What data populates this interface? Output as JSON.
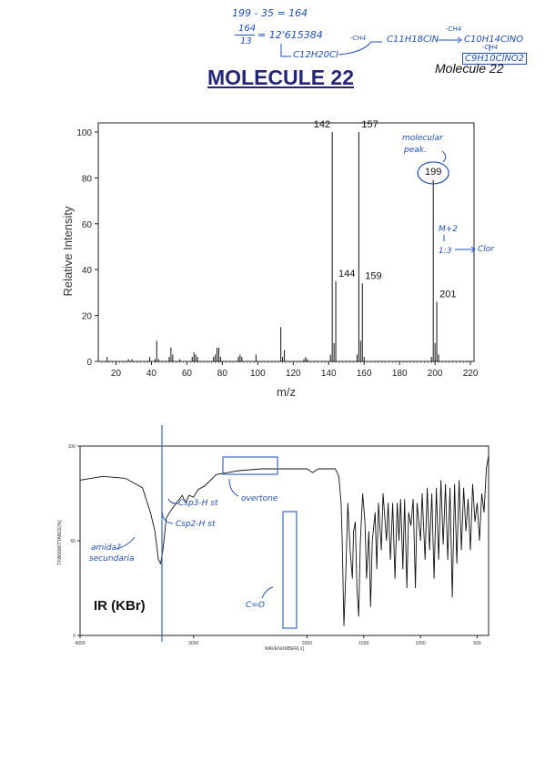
{
  "header": {
    "title": "MOLECULE 22",
    "corner_label": "Molecule 22",
    "calc_line1": "199 - 35 = 164",
    "calc_fraction_top": "164",
    "calc_fraction_bottom": "13",
    "calc_result": "= 12'615384",
    "formula_base": "C12H20Cl",
    "formula_step1": "C11H18ClN",
    "formula_step2": "C10H14ClNO",
    "formula_step3": "C9H10ClNO2",
    "loss_label": "-CH4"
  },
  "ms_notes": {
    "molecular_peak": "molecular peak.",
    "m_plus_2": "M+2",
    "ratio": "1:3",
    "chlorine": "Clor"
  },
  "ir": {
    "label": "IR (KBr)",
    "ylabel": "TRANSMITTANCE[%]",
    "xlabel": "WAVENUMBER[-1]",
    "y_ticks": [
      "100",
      "50",
      "0"
    ],
    "x_ticks": [
      "4000",
      "3000",
      "2000",
      "1500",
      "1000",
      "500"
    ],
    "notes": {
      "csp3": "Csp3-H st",
      "csp2": "Csp2-H st",
      "overtone": "overtone",
      "amide": "amida? secundaria",
      "carbonyl": "C=O"
    }
  },
  "chart_data": [
    {
      "type": "bar",
      "title": "",
      "xlabel": "m/z",
      "ylabel": "Relative Intensity",
      "xlim": [
        10,
        222
      ],
      "ylim": [
        0,
        100
      ],
      "x_ticks": [
        20,
        40,
        60,
        80,
        100,
        120,
        140,
        160,
        180,
        200,
        220
      ],
      "y_ticks": [
        0,
        20,
        40,
        60,
        80,
        100
      ],
      "peaks": [
        {
          "x": 15,
          "y": 2
        },
        {
          "x": 27,
          "y": 1
        },
        {
          "x": 29,
          "y": 1
        },
        {
          "x": 39,
          "y": 2
        },
        {
          "x": 42,
          "y": 1
        },
        {
          "x": 43,
          "y": 9
        },
        {
          "x": 44,
          "y": 1
        },
        {
          "x": 50,
          "y": 2
        },
        {
          "x": 51,
          "y": 6
        },
        {
          "x": 52,
          "y": 3
        },
        {
          "x": 56,
          "y": 1
        },
        {
          "x": 63,
          "y": 2
        },
        {
          "x": 64,
          "y": 4
        },
        {
          "x": 65,
          "y": 3
        },
        {
          "x": 66,
          "y": 2
        },
        {
          "x": 75,
          "y": 2
        },
        {
          "x": 76,
          "y": 3
        },
        {
          "x": 77,
          "y": 6
        },
        {
          "x": 78,
          "y": 6
        },
        {
          "x": 79,
          "y": 2
        },
        {
          "x": 89,
          "y": 2
        },
        {
          "x": 90,
          "y": 3
        },
        {
          "x": 91,
          "y": 2
        },
        {
          "x": 99,
          "y": 3
        },
        {
          "x": 113,
          "y": 15
        },
        {
          "x": 114,
          "y": 2
        },
        {
          "x": 115,
          "y": 5
        },
        {
          "x": 126,
          "y": 1
        },
        {
          "x": 127,
          "y": 2
        },
        {
          "x": 128,
          "y": 1
        },
        {
          "x": 141,
          "y": 3
        },
        {
          "x": 142,
          "y": 100
        },
        {
          "x": 143,
          "y": 8
        },
        {
          "x": 144,
          "y": 35
        },
        {
          "x": 156,
          "y": 3
        },
        {
          "x": 157,
          "y": 100
        },
        {
          "x": 158,
          "y": 9
        },
        {
          "x": 159,
          "y": 34
        },
        {
          "x": 160,
          "y": 2
        },
        {
          "x": 198,
          "y": 2
        },
        {
          "x": 199,
          "y": 79
        },
        {
          "x": 200,
          "y": 8
        },
        {
          "x": 201,
          "y": 26
        },
        {
          "x": 202,
          "y": 3
        }
      ],
      "labeled_peaks": [
        142,
        157,
        199,
        144,
        159,
        201
      ]
    },
    {
      "type": "line",
      "title": "",
      "xlabel": "WAVENUMBER[-1]",
      "ylabel": "TRANSMITTANCE[%]",
      "xlim": [
        4000,
        400
      ],
      "ylim": [
        0,
        100
      ],
      "series": [
        {
          "points": [
            [
              4000,
              82
            ],
            [
              3800,
              84
            ],
            [
              3600,
              83
            ],
            [
              3450,
              78
            ],
            [
              3380,
              65
            ],
            [
              3340,
              55
            ],
            [
              3310,
              40
            ],
            [
              3290,
              38
            ],
            [
              3270,
              45
            ],
            [
              3240,
              62
            ],
            [
              3200,
              66
            ],
            [
              3150,
              70
            ],
            [
              3100,
              74
            ],
            [
              3070,
              70
            ],
            [
              3040,
              74
            ],
            [
              3000,
              73
            ],
            [
              2960,
              77
            ],
            [
              2900,
              79
            ],
            [
              2800,
              85
            ],
            [
              2600,
              87
            ],
            [
              2400,
              88
            ],
            [
              2200,
              88
            ],
            [
              2000,
              88
            ],
            [
              1950,
              86
            ],
            [
              1900,
              88
            ],
            [
              1850,
              88
            ],
            [
              1800,
              88
            ],
            [
              1750,
              88
            ],
            [
              1720,
              84
            ],
            [
              1700,
              70
            ],
            [
              1690,
              50
            ],
            [
              1675,
              5
            ],
            [
              1660,
              30
            ],
            [
              1640,
              70
            ],
            [
              1620,
              45
            ],
            [
              1600,
              30
            ],
            [
              1590,
              55
            ],
            [
              1575,
              60
            ],
            [
              1560,
              25
            ],
            [
              1545,
              10
            ],
            [
              1530,
              50
            ],
            [
              1510,
              75
            ],
            [
              1490,
              60
            ],
            [
              1475,
              30
            ],
            [
              1455,
              55
            ],
            [
              1440,
              15
            ],
            [
              1425,
              50
            ],
            [
              1400,
              65
            ],
            [
              1385,
              35
            ],
            [
              1370,
              70
            ],
            [
              1345,
              45
            ],
            [
              1330,
              75
            ],
            [
              1300,
              50
            ],
            [
              1285,
              70
            ],
            [
              1265,
              40
            ],
            [
              1245,
              70
            ],
            [
              1225,
              30
            ],
            [
              1205,
              70
            ],
            [
              1190,
              50
            ],
            [
              1175,
              72
            ],
            [
              1155,
              35
            ],
            [
              1140,
              72
            ],
            [
              1120,
              25
            ],
            [
              1105,
              65
            ],
            [
              1085,
              58
            ],
            [
              1065,
              72
            ],
            [
              1045,
              25
            ],
            [
              1030,
              70
            ],
            [
              1000,
              50
            ],
            [
              985,
              75
            ],
            [
              960,
              40
            ],
            [
              940,
              78
            ],
            [
              920,
              45
            ],
            [
              900,
              75
            ],
            [
              880,
              30
            ],
            [
              860,
              78
            ],
            [
              840,
              40
            ],
            [
              820,
              82
            ],
            [
              800,
              48
            ],
            [
              780,
              80
            ],
            [
              760,
              40
            ],
            [
              740,
              78
            ],
            [
              720,
              20
            ],
            [
              700,
              80
            ],
            [
              680,
              38
            ],
            [
              660,
              82
            ],
            [
              640,
              45
            ],
            [
              620,
              78
            ],
            [
              600,
              55
            ],
            [
              580,
              72
            ],
            [
              560,
              45
            ],
            [
              540,
              80
            ],
            [
              520,
              60
            ],
            [
              500,
              70
            ],
            [
              480,
              50
            ],
            [
              460,
              75
            ],
            [
              440,
              65
            ],
            [
              420,
              88
            ],
            [
              400,
              95
            ]
          ]
        }
      ]
    }
  ]
}
